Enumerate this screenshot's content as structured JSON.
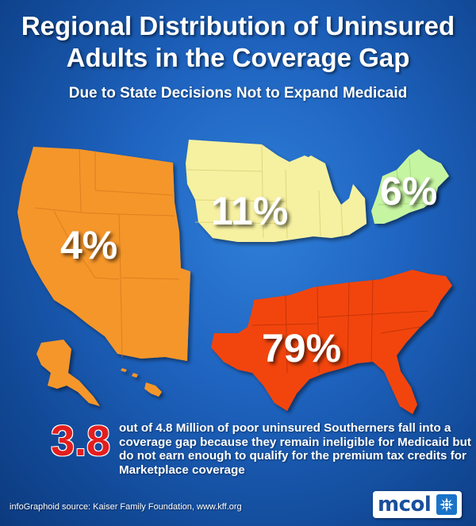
{
  "title": {
    "line1": "Regional Distribution of Uninsured",
    "line2": "Adults in the Coverage Gap"
  },
  "subtitle": "Due to State Decisions Not to Expand Medicaid",
  "regions": {
    "west": {
      "percent": "4%",
      "color": "#f5962c"
    },
    "midwest": {
      "percent": "11%",
      "color": "#f6f1a0"
    },
    "northeast": {
      "percent": "6%",
      "color": "#c6f5a2"
    },
    "south": {
      "percent": "79%",
      "color": "#f2440f"
    }
  },
  "callout": {
    "number": "3.8",
    "text": "out of 4.8 Million of poor uninsured Southerners fall into a coverage gap because they remain ineligible for Medicaid but do not earn enough to qualify for the premium tax credits for Marketplace coverage"
  },
  "source": "infoGraphoid source:  Kaiser Family Foundation, www.kff.org",
  "logo": {
    "text": "mcol"
  },
  "colors": {
    "background": "#1e63bf",
    "highlight_number": "#e41e1e"
  }
}
